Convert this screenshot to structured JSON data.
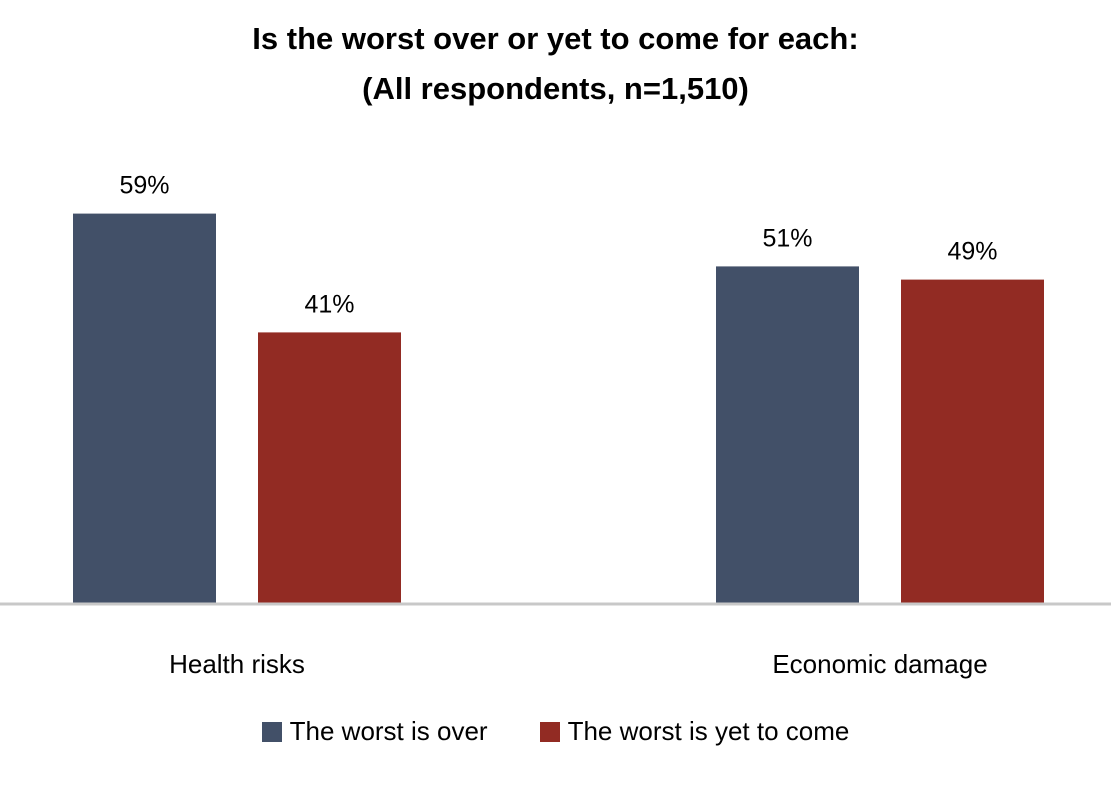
{
  "chart_data": {
    "type": "bar",
    "title_line1": "Is the worst over or yet to come for each:",
    "title_line2": "(All respondents, n=1,510)",
    "categories": [
      "Health risks",
      "Economic damage"
    ],
    "series": [
      {
        "name": "The worst is over",
        "color": "#425068",
        "values": [
          59,
          51
        ],
        "labels": [
          "59%",
          "51%"
        ]
      },
      {
        "name": "The worst is yet to come",
        "color": "#922b23",
        "values": [
          41,
          49
        ],
        "labels": [
          "41%",
          "49%"
        ]
      }
    ],
    "xlabel": "",
    "ylabel": "",
    "ylim": [
      0,
      70
    ],
    "grid": false,
    "legend_position": "bottom"
  }
}
